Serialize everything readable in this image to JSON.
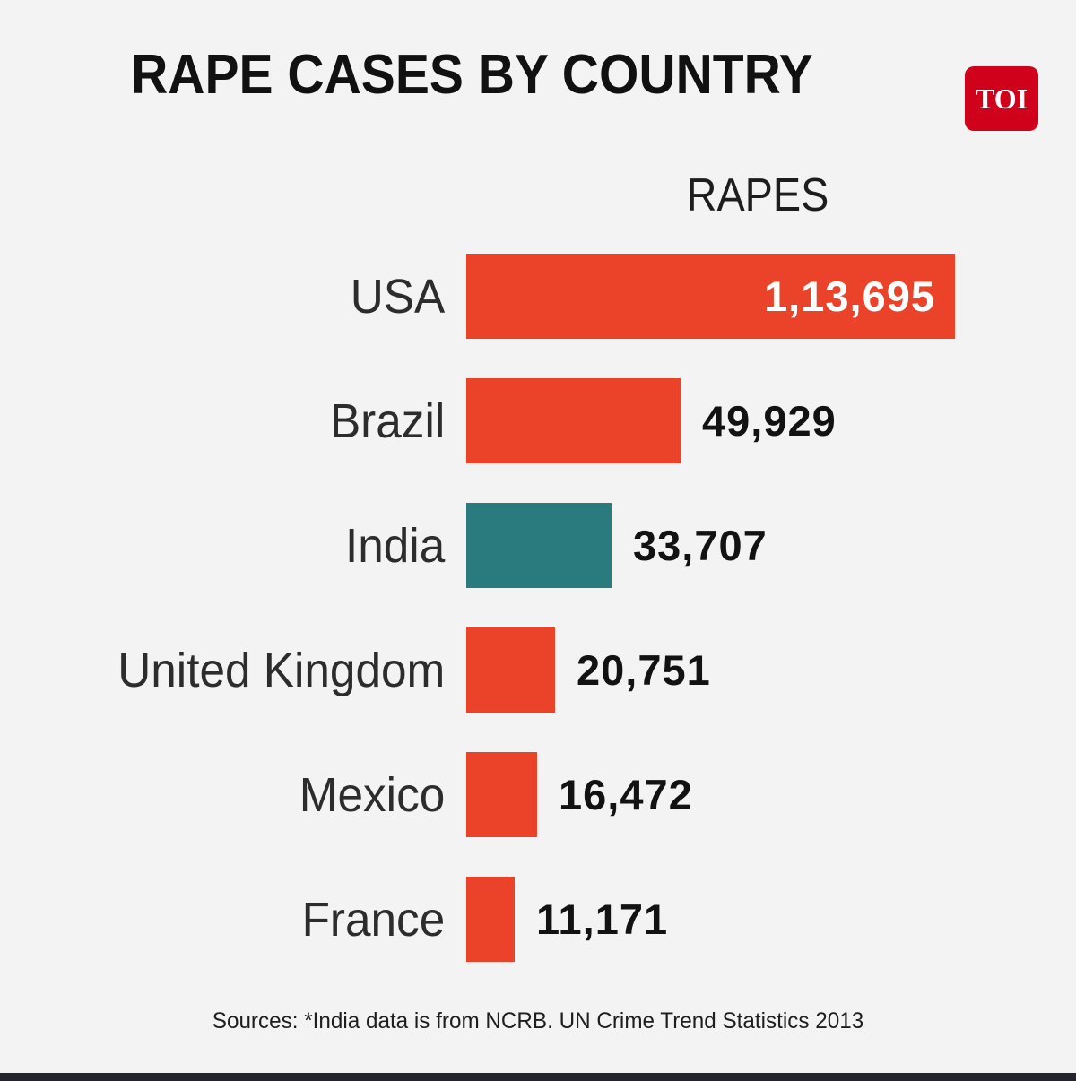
{
  "title": "RAPE CASES BY COUNTRY",
  "logo": {
    "text": "TOI"
  },
  "column_header": "RAPES",
  "source": "Sources: *India data is from NCRB. UN Crime Trend Statistics 2013",
  "colors": {
    "bar_red": "#ea4329",
    "bar_teal": "#2a7b7e",
    "background": "#f3f3f3",
    "logo_red": "#d0021b",
    "footer_strip": "#23242e"
  },
  "chart_data": {
    "type": "bar",
    "orientation": "horizontal",
    "title": "RAPE CASES BY COUNTRY",
    "value_header": "RAPES",
    "categories": [
      "USA",
      "Brazil",
      "India",
      "United Kingdom",
      "Mexico",
      "France"
    ],
    "values": [
      113695,
      49929,
      33707,
      20751,
      16472,
      11171
    ],
    "display_values": [
      "1,13,695",
      "49,929",
      "33,707",
      "20,751",
      "16,472",
      "11,171"
    ],
    "bar_colors": [
      "#ea4329",
      "#ea4329",
      "#2a7b7e",
      "#ea4329",
      "#ea4329",
      "#ea4329"
    ],
    "value_label_position": [
      "inside",
      "outside",
      "outside",
      "outside",
      "outside",
      "outside"
    ],
    "xlim": [
      0,
      113695
    ],
    "legend": "none",
    "grid": "off",
    "source": "Sources: *India data is from NCRB. UN Crime Trend Statistics 2013"
  }
}
